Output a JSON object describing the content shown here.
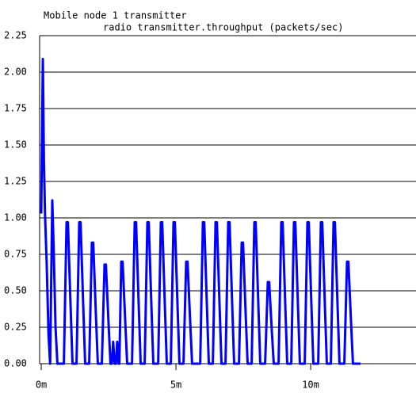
{
  "chart_data": {
    "type": "line",
    "title": "Mobile node 1 transmitter",
    "subtitle": "radio transmitter.throughput (packets/sec)",
    "x": [
      0,
      0.06,
      0.1,
      0.14,
      0.2,
      0.27,
      0.33,
      0.41,
      0.47,
      0.53,
      0.6,
      0.84,
      0.94,
      0.99,
      1.09,
      1.16,
      1.31,
      1.41,
      1.46,
      1.56,
      1.63,
      1.78,
      1.88,
      1.93,
      2.03,
      2.1,
      2.25,
      2.35,
      2.4,
      2.5,
      2.57,
      2.62,
      2.67,
      2.72,
      2.77,
      2.82,
      2.87,
      2.9,
      2.97,
      3.02,
      3.12,
      3.19,
      3.37,
      3.47,
      3.52,
      3.62,
      3.69,
      3.84,
      3.94,
      3.99,
      4.09,
      4.16,
      4.34,
      4.44,
      4.49,
      4.59,
      4.66,
      4.81,
      4.91,
      4.96,
      5.06,
      5.13,
      5.28,
      5.38,
      5.43,
      5.53,
      5.6,
      5.9,
      6.0,
      6.05,
      6.15,
      6.22,
      6.37,
      6.47,
      6.52,
      6.62,
      6.69,
      6.84,
      6.94,
      6.99,
      7.09,
      7.16,
      7.34,
      7.44,
      7.49,
      7.59,
      7.66,
      7.81,
      7.91,
      7.96,
      8.06,
      8.13,
      8.31,
      8.41,
      8.46,
      8.56,
      8.63,
      8.81,
      8.91,
      8.96,
      9.06,
      9.13,
      9.28,
      9.38,
      9.43,
      9.53,
      9.6,
      9.78,
      9.88,
      9.93,
      10.03,
      10.1,
      10.28,
      10.38,
      10.43,
      10.53,
      10.6,
      10.75,
      10.85,
      10.9,
      11.0,
      11.07,
      11.25,
      11.35,
      11.4,
      11.5,
      11.57,
      11.85
    ],
    "series": [
      {
        "color": "#0000ff",
        "values": [
          1.03,
          2.09,
          1.38,
          1.03,
          0.7,
          0.2,
          0,
          1.12,
          0.73,
          0.25,
          0,
          0,
          0.97,
          0.97,
          0.39,
          0,
          0,
          0.97,
          0.97,
          0.39,
          0,
          0,
          0.83,
          0.83,
          0.33,
          0,
          0,
          0.68,
          0.68,
          0.27,
          0,
          0,
          0.15,
          0,
          0,
          0.15,
          0,
          0,
          0.7,
          0.7,
          0.28,
          0,
          0,
          0.97,
          0.97,
          0.39,
          0,
          0,
          0.97,
          0.97,
          0.39,
          0,
          0,
          0.97,
          0.97,
          0.39,
          0,
          0,
          0.97,
          0.97,
          0.39,
          0,
          0,
          0.7,
          0.7,
          0.28,
          0,
          0,
          0.97,
          0.97,
          0.39,
          0,
          0,
          0.97,
          0.97,
          0.39,
          0,
          0,
          0.97,
          0.97,
          0.39,
          0,
          0,
          0.83,
          0.83,
          0.33,
          0,
          0,
          0.97,
          0.97,
          0.39,
          0,
          0,
          0.56,
          0.56,
          0.22,
          0,
          0,
          0.97,
          0.97,
          0.39,
          0,
          0,
          0.97,
          0.97,
          0.39,
          0,
          0,
          0.97,
          0.97,
          0.39,
          0,
          0,
          0.97,
          0.97,
          0.39,
          0,
          0,
          0.97,
          0.97,
          0.39,
          0,
          0,
          0.7,
          0.7,
          0.28,
          0,
          0
        ]
      }
    ],
    "xlim": [
      -0.06,
      13.91
    ],
    "xticks": [
      {
        "value": 0,
        "label": "0m"
      },
      {
        "value": 5,
        "label": "5m"
      },
      {
        "value": 10,
        "label": "10m"
      }
    ],
    "ylim": [
      0,
      2.25
    ],
    "yticks": [
      {
        "value": 0,
        "label": "0.00"
      },
      {
        "value": 0.25,
        "label": "0.25"
      },
      {
        "value": 0.5,
        "label": "0.50"
      },
      {
        "value": 0.75,
        "label": "0.75"
      },
      {
        "value": 1,
        "label": "1.00"
      },
      {
        "value": 1.25,
        "label": "1.25"
      },
      {
        "value": 1.5,
        "label": "1.50"
      },
      {
        "value": 1.75,
        "label": "1.75"
      },
      {
        "value": 2,
        "label": "2.00"
      },
      {
        "value": 2.25,
        "label": "2.25"
      }
    ],
    "grid": true
  }
}
